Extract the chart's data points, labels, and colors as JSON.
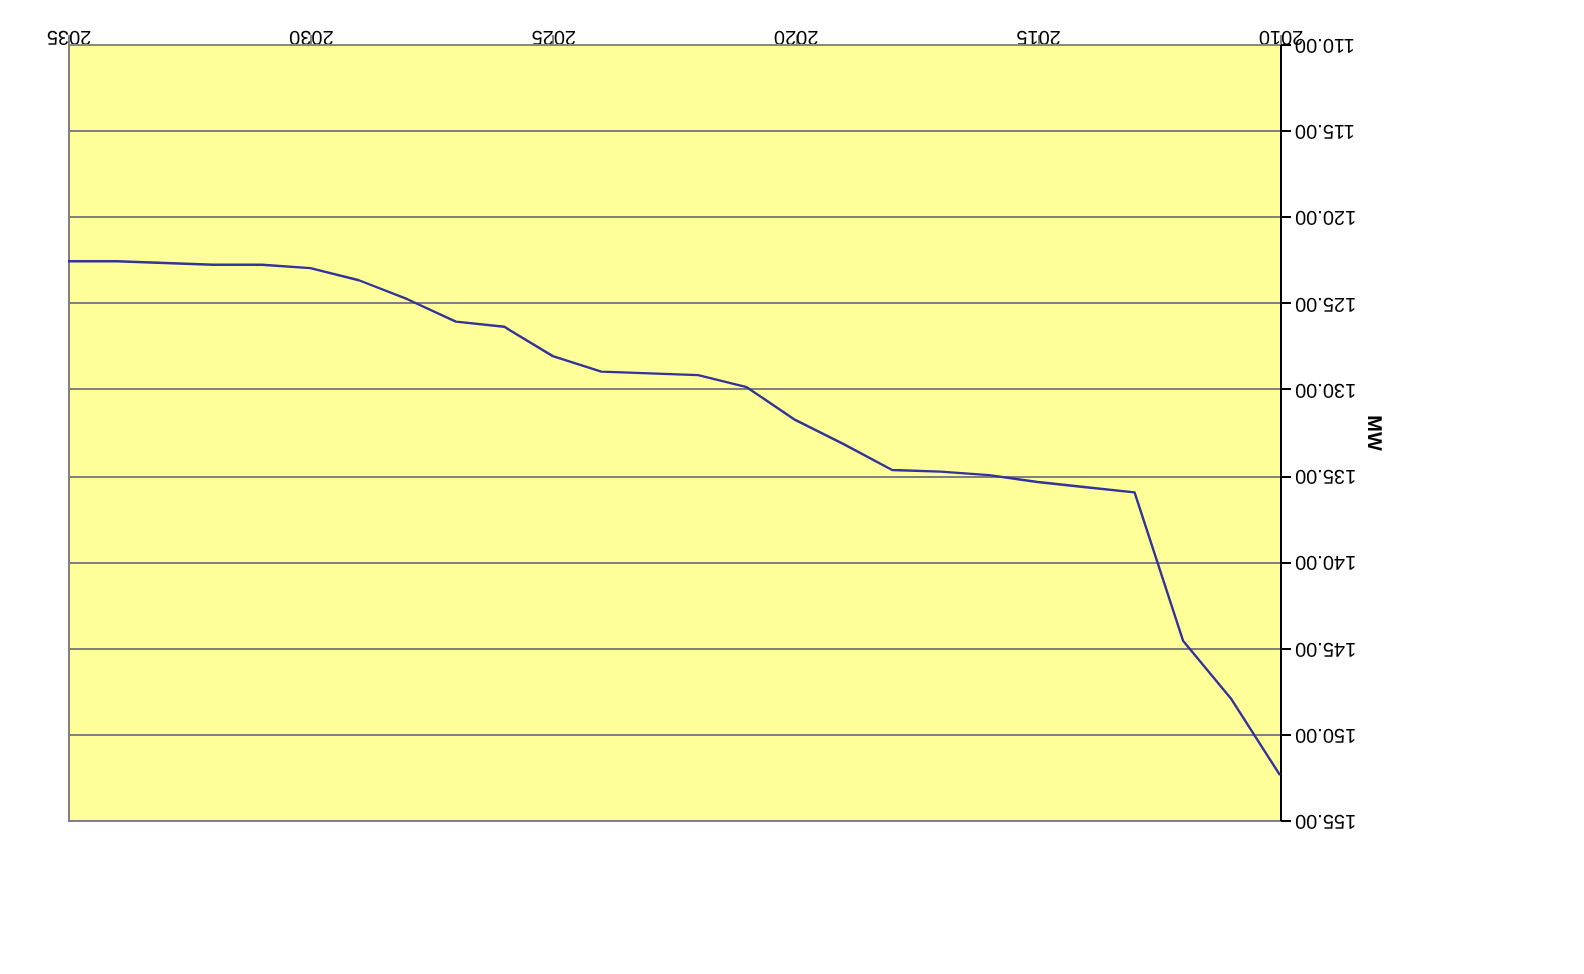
{
  "chart_data": {
    "type": "line",
    "ylabel": "MW",
    "x": [
      2010,
      2011,
      2012,
      2013,
      2014,
      2015,
      2016,
      2017,
      2018,
      2019,
      2020,
      2021,
      2022,
      2023,
      2024,
      2025,
      2026,
      2027,
      2028,
      2029,
      2030,
      2031,
      2032,
      2033,
      2034,
      2035
    ],
    "series": [
      {
        "color": "#333399",
        "values": [
          152.4,
          148.0,
          144.6,
          136.0,
          135.7,
          135.4,
          135.0,
          134.8,
          134.7,
          133.2,
          131.8,
          129.9,
          129.2,
          129.1,
          129.0,
          128.1,
          126.4,
          126.1,
          124.8,
          123.7,
          123.0,
          122.8,
          122.8,
          122.7,
          122.6,
          122.6
        ]
      }
    ],
    "xlim": [
      2035,
      2010
    ],
    "xticks": [
      2010,
      2015,
      2020,
      2025,
      2030,
      2035
    ],
    "ylim": [
      155,
      110
    ],
    "yticks": [
      {
        "value": 110,
        "label": "110.00"
      },
      {
        "value": 115,
        "label": "115.00"
      },
      {
        "value": 120,
        "label": "120.00"
      },
      {
        "value": 125,
        "label": "125.00"
      },
      {
        "value": 130,
        "label": "130.00"
      },
      {
        "value": 135,
        "label": "135.00"
      },
      {
        "value": 140,
        "label": "140.00"
      },
      {
        "value": 145,
        "label": "145.00"
      },
      {
        "value": 150,
        "label": "150.00"
      },
      {
        "value": 155,
        "label": "155.00"
      }
    ],
    "grid": "y",
    "marker": "none",
    "line_style": "solid"
  }
}
